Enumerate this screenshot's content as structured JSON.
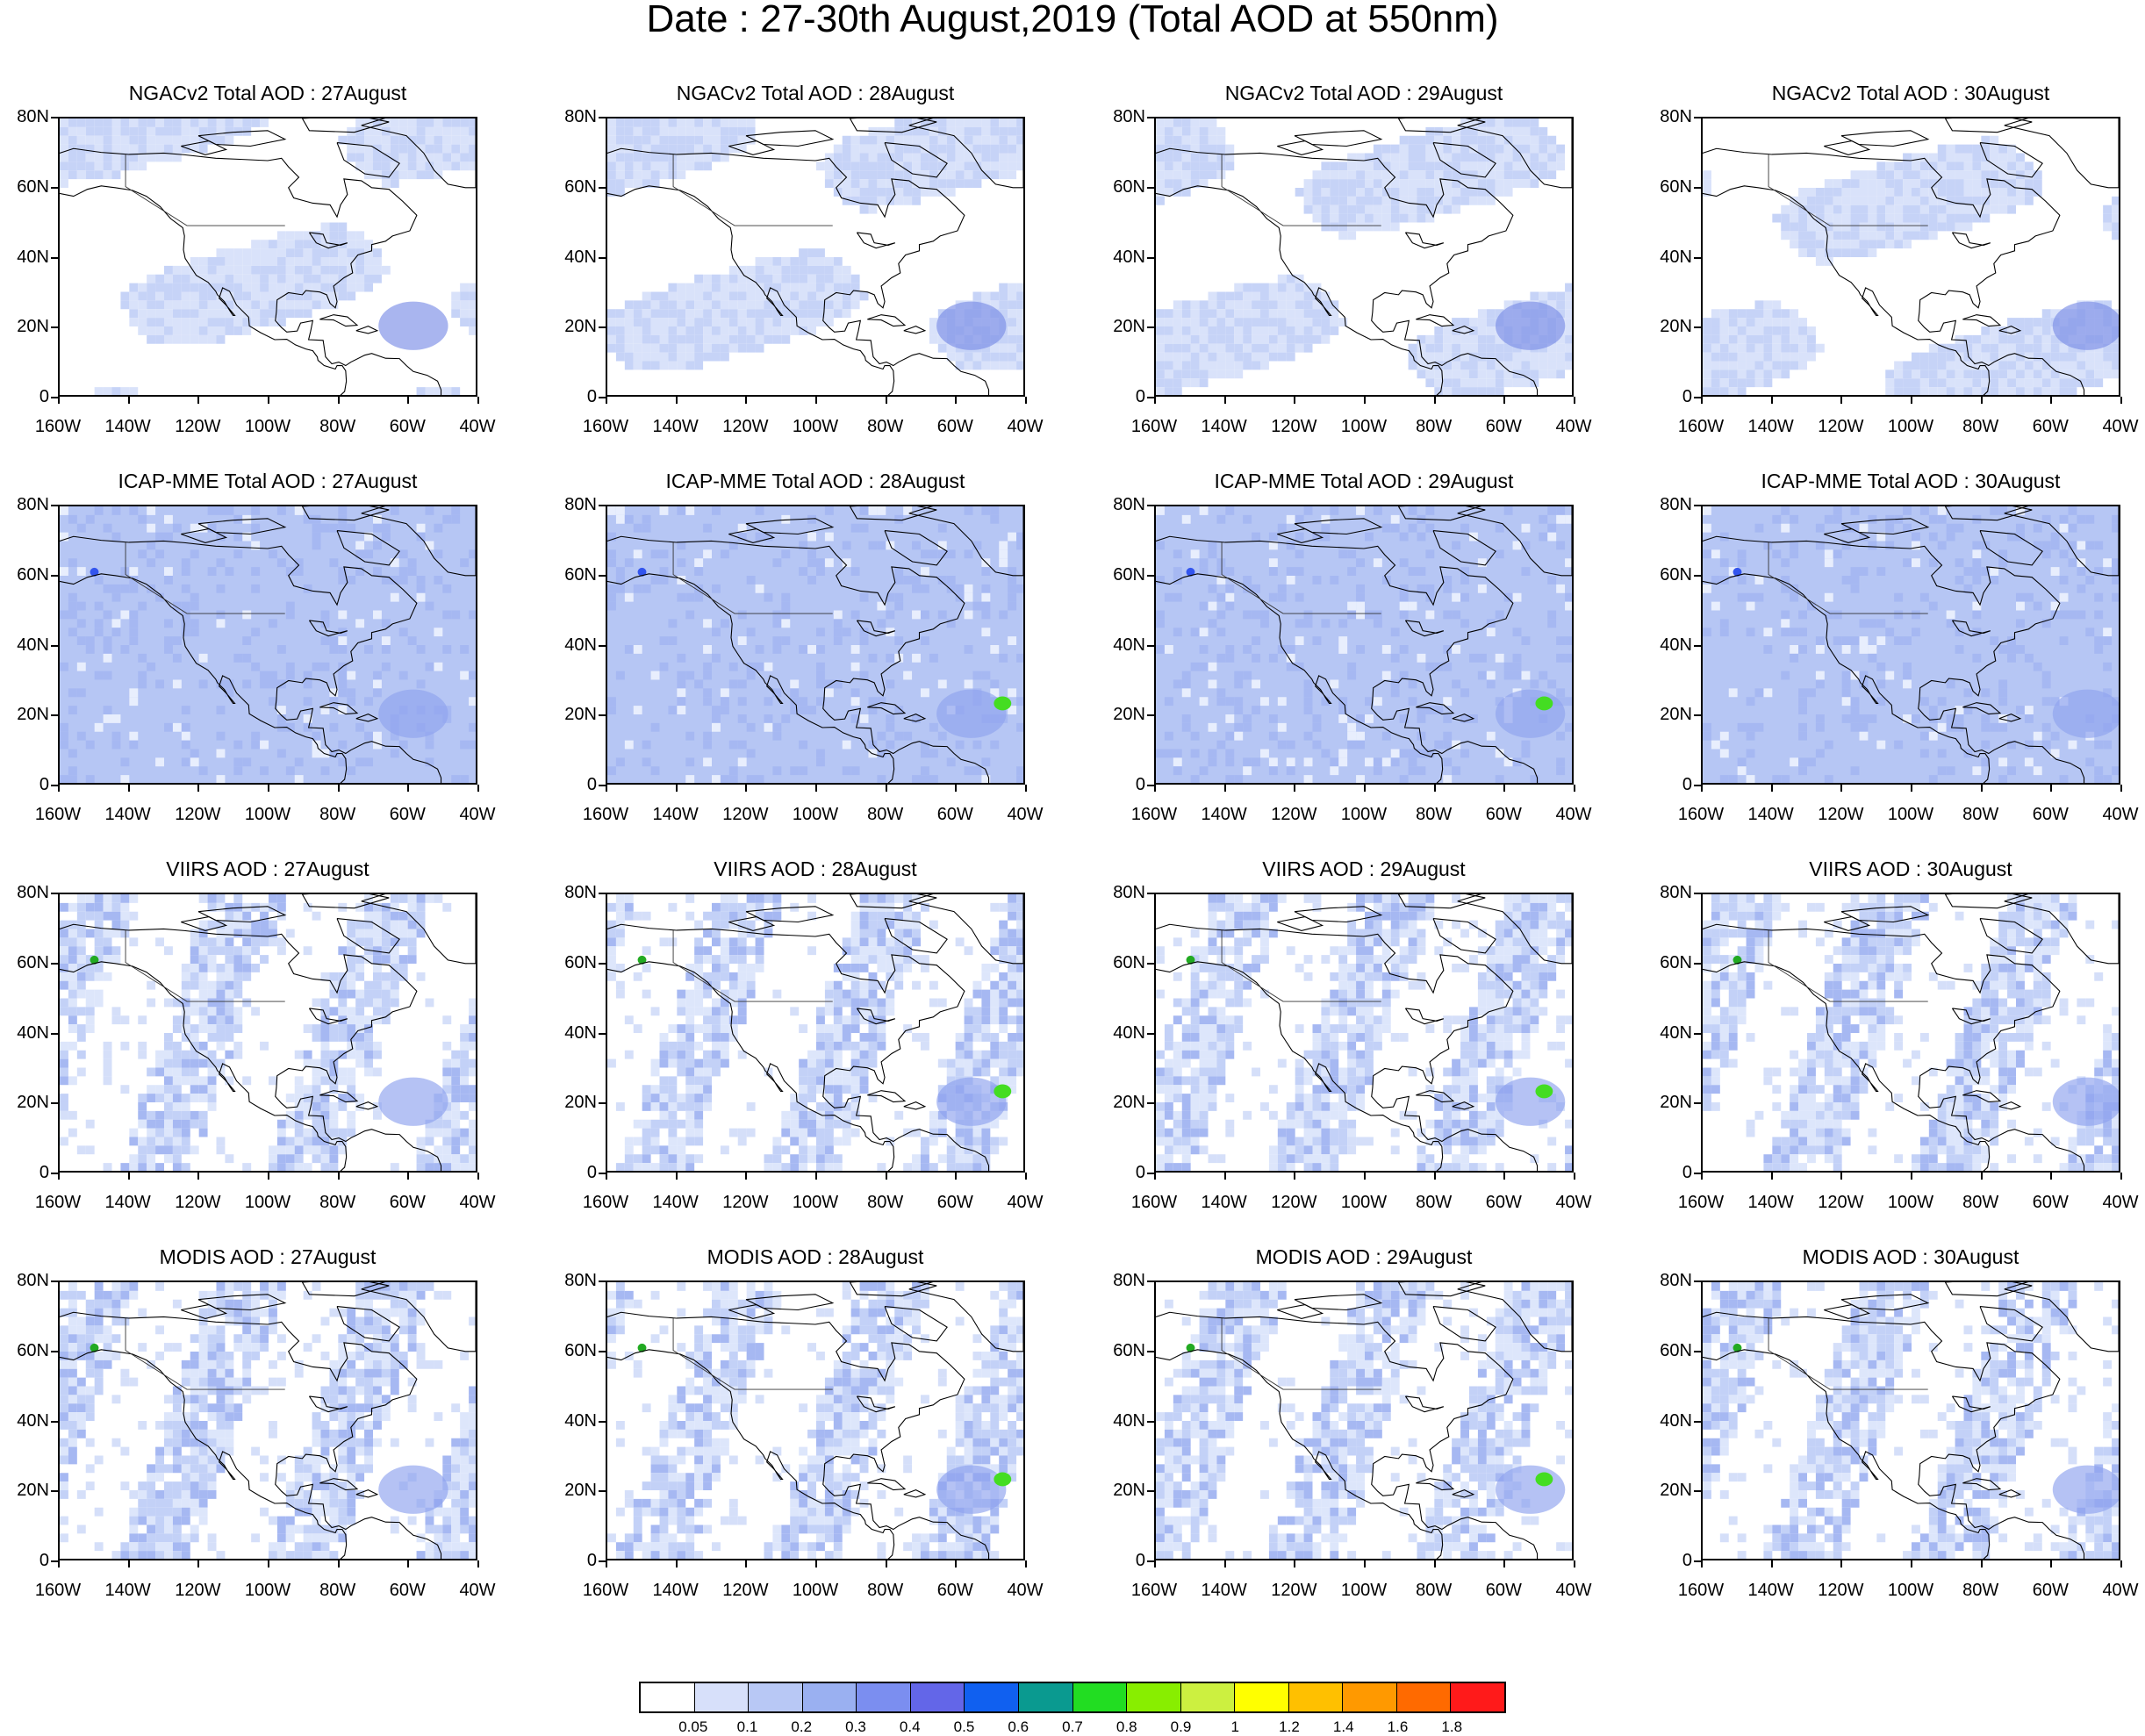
{
  "title": "Date : 27-30th August,2019 (Total AOD at 550nm)",
  "rows": [
    {
      "prefix": "NGACv2 Total AOD : ",
      "field": "model-smooth",
      "base": "#d5dff9",
      "blob": "#7b8ee6"
    },
    {
      "prefix": "ICAP-MME Total AOD : ",
      "field": "model-full",
      "base": "#b6c6f4",
      "blob": "#8fa3ee"
    },
    {
      "prefix": "VIIRS AOD : ",
      "field": "satellite-swath",
      "base": "#dde6fb",
      "blob": "#8ea2ee"
    },
    {
      "prefix": "MODIS AOD : ",
      "field": "satellite-swath",
      "base": "#d0dbf8",
      "blob": "#8ea2ee"
    }
  ],
  "dates": [
    "27August",
    "28August",
    "29August",
    "30August"
  ],
  "panel_titles": [
    [
      "NGACv2 Total AOD : 27August",
      "NGACv2 Total AOD : 28August",
      "NGACv2 Total AOD : 29August",
      "NGACv2 Total AOD : 30August"
    ],
    [
      "ICAP-MME Total AOD : 27August",
      "ICAP-MME Total AOD : 28August",
      "ICAP-MME Total AOD : 29August",
      "ICAP-MME Total AOD : 30August"
    ],
    [
      "VIIRS AOD : 27August",
      "VIIRS AOD : 28August",
      "VIIRS AOD : 29August",
      "VIIRS AOD : 30August"
    ],
    [
      "MODIS AOD : 27August",
      "MODIS AOD : 28August",
      "MODIS AOD : 29August",
      "MODIS AOD : 30August"
    ]
  ],
  "lat_labels": [
    "80N",
    "60N",
    "40N",
    "20N",
    "0"
  ],
  "lon_labels": [
    "160W",
    "140W",
    "120W",
    "100W",
    "80W",
    "60W",
    "40W"
  ],
  "colorbar": {
    "levels": [
      "0.05",
      "0.1",
      "0.2",
      "0.3",
      "0.4",
      "0.5",
      "0.6",
      "0.7",
      "0.8",
      "0.9",
      "1",
      "1.2",
      "1.4",
      "1.6",
      "1.8"
    ],
    "colors": [
      "#ffffff",
      "#d7e0fa",
      "#b8c8f5",
      "#9ab0f1",
      "#7b8ef0",
      "#6366e8",
      "#1060f0",
      "#0a9a90",
      "#22dd22",
      "#88ee00",
      "#ccf040",
      "#ffff00",
      "#ffc000",
      "#ff9900",
      "#ff6a00",
      "#ff1a1a"
    ]
  },
  "map": {
    "lon_range": [
      -160,
      -40
    ],
    "lat_range": [
      0,
      80
    ]
  }
}
